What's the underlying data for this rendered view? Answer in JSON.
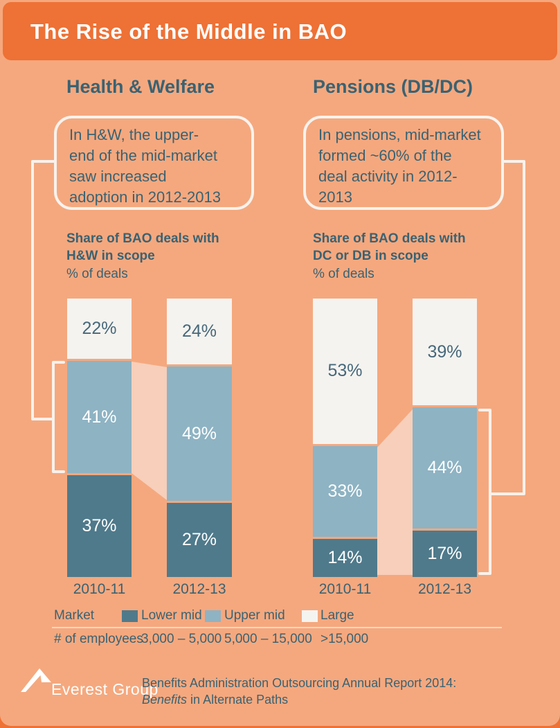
{
  "title": {
    "text": "The Rise of the Middle in BAO"
  },
  "sections": {
    "left": {
      "heading": "Health & Welfare",
      "callout": "In H&W, the upper-\nend of the mid-market\nsaw increased\nadoption in 2012-2013"
    },
    "right": {
      "heading": "Pensions (DB/DC)",
      "callout": "In pensions, mid-market\nformed ~60% of the\ndeal activity in 2012-\n2013"
    }
  },
  "chart_data": [
    {
      "type": "stacked-bar",
      "title": "Share of BAO deals with\nH&W in scope",
      "unit_label": "% of deals",
      "categories": [
        "2010-11",
        "2012-13"
      ],
      "series": [
        {
          "name": "Lower mid",
          "values": [
            37,
            27
          ],
          "color": "#4F7A8B",
          "label_color": "#FFFFFF"
        },
        {
          "name": "Upper mid",
          "values": [
            41,
            49
          ],
          "color": "#8EB3C3",
          "label_color": "#FFFFFF"
        },
        {
          "name": "Large",
          "values": [
            22,
            24
          ],
          "color": "#F4F3F0",
          "label_color": "#46687A"
        }
      ],
      "ylim": [
        0,
        100
      ],
      "value_suffix": "%",
      "annotation": "flow band links Upper mid 41% (2010-11) to Upper mid 49% (2012-13)"
    },
    {
      "type": "stacked-bar",
      "title": "Share of BAO deals with\nDC or DB in scope",
      "unit_label": "% of deals",
      "categories": [
        "2010-11",
        "2012-13"
      ],
      "series": [
        {
          "name": "Lower mid",
          "values": [
            14,
            17
          ],
          "color": "#4F7A8B",
          "label_color": "#FFFFFF"
        },
        {
          "name": "Upper mid",
          "values": [
            33,
            44
          ],
          "color": "#8EB3C3",
          "label_color": "#FFFFFF"
        },
        {
          "name": "Large",
          "values": [
            53,
            39
          ],
          "color": "#F4F3F0",
          "label_color": "#46687A"
        }
      ],
      "ylim": [
        0,
        100
      ],
      "value_suffix": "%",
      "annotation": "flow band links mid-market 47% (2010-11) to mid-market 61% (2012-13)"
    }
  ],
  "legend": {
    "market_label": "Market",
    "items": [
      {
        "label": "Lower mid"
      },
      {
        "label": "Upper mid"
      },
      {
        "label": "Large"
      }
    ],
    "employees_label": "# of employees",
    "employee_ranges": [
      "3,000 – 5,000",
      "5,000 – 15,000",
      ">15,000"
    ]
  },
  "footer": {
    "logo_text": "Everest Group",
    "source_line1": "Benefits Administration Outsourcing Annual Report 2014:",
    "source_line2_italic": "Benefits",
    "source_line2_rest": " in Alternate Paths"
  },
  "colors": {
    "header_orange": "#EE7135",
    "background": "#F5A87E",
    "flow_band": "#F7CFBA",
    "lower_mid": "#4F7A8B",
    "upper_mid": "#8EB3C3",
    "large": "#F4F3F0",
    "teal_text": "#3A6272",
    "line_white": "#F7F2ED",
    "divider": "#F6D8C4"
  }
}
